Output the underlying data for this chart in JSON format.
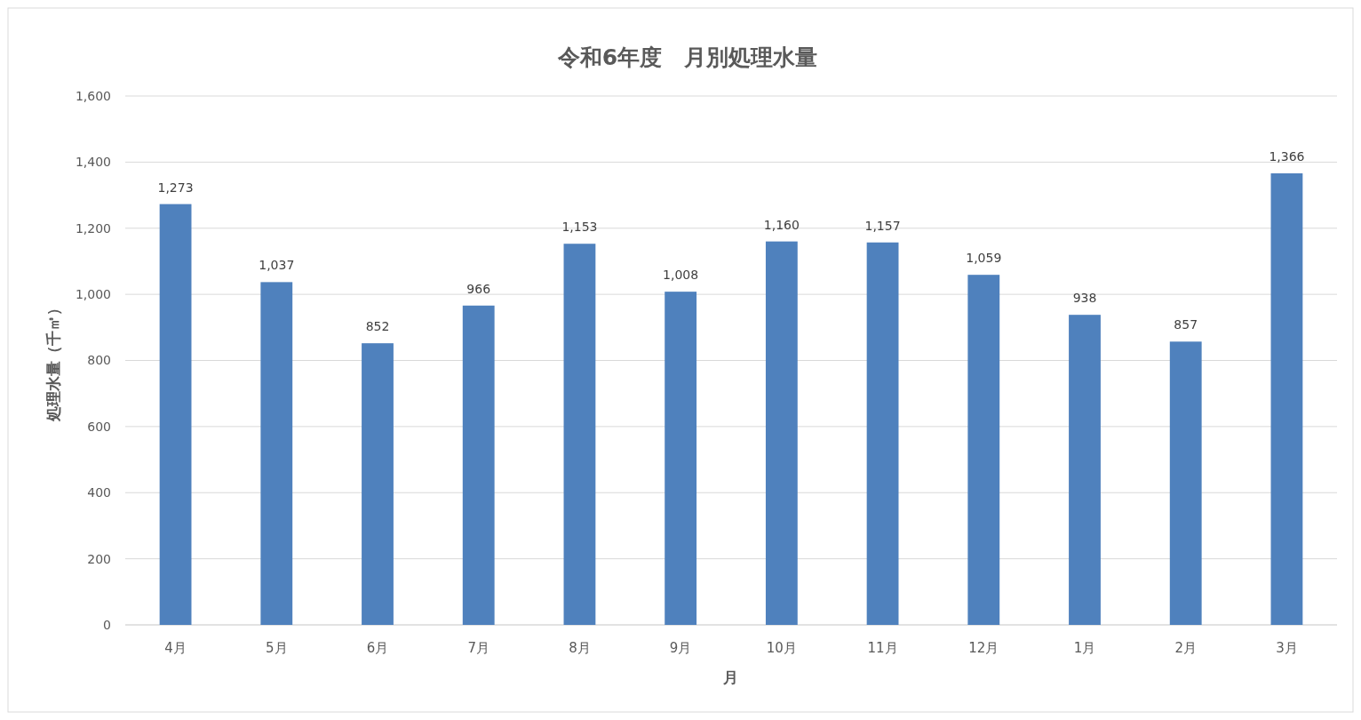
{
  "chart_data": {
    "type": "bar",
    "title": "令和6年度　月別処理水量",
    "xlabel": "月",
    "ylabel": "処理水量（千㎥）",
    "categories": [
      "4月",
      "5月",
      "6月",
      "7月",
      "8月",
      "9月",
      "10月",
      "11月",
      "12月",
      "1月",
      "2月",
      "3月"
    ],
    "values": [
      1273,
      1037,
      852,
      966,
      1153,
      1008,
      1160,
      1157,
      1059,
      938,
      857,
      1366
    ],
    "color": "#4f81bd",
    "ylim": [
      0,
      1600
    ],
    "yticks": [
      {
        "value": 0,
        "label": "0"
      },
      {
        "value": 200,
        "label": "200"
      },
      {
        "value": 400,
        "label": "400"
      },
      {
        "value": 600,
        "label": "600"
      },
      {
        "value": 800,
        "label": "800"
      },
      {
        "value": 1000,
        "label": "1,000"
      },
      {
        "value": 1200,
        "label": "1,200"
      },
      {
        "value": 1400,
        "label": "1,400"
      },
      {
        "value": 1600,
        "label": "1,600"
      }
    ],
    "value_labels": [
      "1,273",
      "1,037",
      "852",
      "966",
      "1,153",
      "1,008",
      "1,160",
      "1,157",
      "1,059",
      "938",
      "857",
      "1,366"
    ],
    "grid": "y"
  }
}
